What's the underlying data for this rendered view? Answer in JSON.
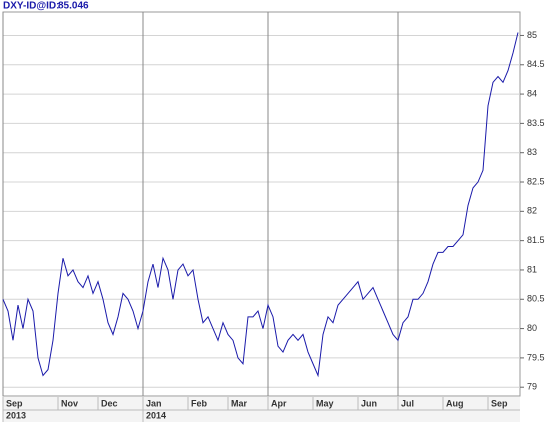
{
  "chart_data": {
    "type": "line",
    "title": "DXY-ID@ID:",
    "last_value": 85.046,
    "color": "#1a1aaa",
    "grid": true,
    "categories": [
      "Sep",
      null,
      null,
      null,
      null,
      null,
      null,
      null,
      null,
      null,
      null,
      "Nov",
      null,
      null,
      null,
      null,
      null,
      null,
      null,
      "Dec",
      null,
      null,
      null,
      null,
      null,
      null,
      null,
      null,
      "Jan",
      null,
      null,
      null,
      null,
      null,
      null,
      null,
      null,
      "Feb",
      null,
      null,
      null,
      null,
      null,
      null,
      null,
      "Mar",
      null,
      null,
      null,
      null,
      null,
      null,
      null,
      "Apr",
      null,
      null,
      null,
      null,
      null,
      null,
      null,
      null,
      "May",
      null,
      null,
      null,
      null,
      null,
      null,
      null,
      null,
      "Jun",
      null,
      null,
      null,
      null,
      null,
      null,
      null,
      "Jul",
      null,
      null,
      null,
      null,
      null,
      null,
      null,
      null,
      "Aug",
      null,
      null,
      null,
      null,
      null,
      null,
      null,
      null,
      "Sep",
      null,
      null,
      null,
      null,
      null,
      null
    ],
    "years": [
      "2013",
      null,
      null,
      null,
      null,
      null,
      null,
      null,
      null,
      null,
      null,
      null,
      null,
      null,
      null,
      null,
      null,
      null,
      null,
      null,
      null,
      null,
      null,
      null,
      null,
      null,
      null,
      null,
      "2014",
      null,
      null,
      null,
      null,
      null,
      null,
      null,
      null,
      null,
      null,
      null,
      null,
      null,
      null,
      null,
      null,
      null,
      null,
      null,
      null,
      null,
      null,
      null,
      null,
      null,
      null,
      null,
      null,
      null,
      null,
      null,
      null,
      null,
      null,
      null,
      null,
      null,
      null,
      null,
      null,
      null,
      null,
      null,
      null,
      null,
      null,
      null,
      null,
      null,
      null,
      null,
      null,
      null,
      null,
      null,
      null,
      null,
      null,
      null,
      null,
      null,
      null,
      null,
      null,
      null,
      null,
      null,
      null,
      null,
      null,
      null,
      null,
      null,
      null,
      null
    ],
    "values": [
      80.5,
      80.3,
      79.8,
      80.4,
      80.0,
      80.5,
      80.3,
      79.5,
      79.2,
      79.3,
      79.8,
      80.6,
      81.2,
      80.9,
      81.0,
      80.8,
      80.7,
      80.9,
      80.6,
      80.8,
      80.5,
      80.1,
      79.9,
      80.2,
      80.6,
      80.5,
      80.3,
      80.0,
      80.3,
      80.8,
      81.1,
      80.7,
      81.2,
      81.0,
      80.5,
      81.0,
      81.1,
      80.9,
      81.0,
      80.5,
      80.1,
      80.2,
      80.0,
      79.8,
      80.1,
      79.9,
      79.8,
      79.5,
      79.4,
      80.2,
      80.2,
      80.3,
      80.0,
      80.4,
      80.2,
      79.7,
      79.6,
      79.8,
      79.9,
      79.8,
      79.9,
      79.6,
      79.4,
      79.2,
      79.9,
      80.2,
      80.1,
      80.4,
      80.5,
      80.6,
      80.7,
      80.8,
      80.5,
      80.6,
      80.7,
      80.5,
      80.3,
      80.1,
      79.9,
      79.8,
      80.1,
      80.2,
      80.5,
      80.5,
      80.6,
      80.8,
      81.1,
      81.3,
      81.3,
      81.4,
      81.4,
      81.5,
      81.6,
      82.1,
      82.4,
      82.5,
      82.7,
      83.8,
      84.2,
      84.3,
      84.2,
      84.4,
      84.7,
      85.05
    ],
    "ylim": [
      78.85,
      85.4
    ],
    "yticks": [
      79,
      79.5,
      80,
      80.5,
      81,
      81.5,
      82,
      82.5,
      83,
      83.5,
      84,
      84.5,
      85
    ]
  }
}
